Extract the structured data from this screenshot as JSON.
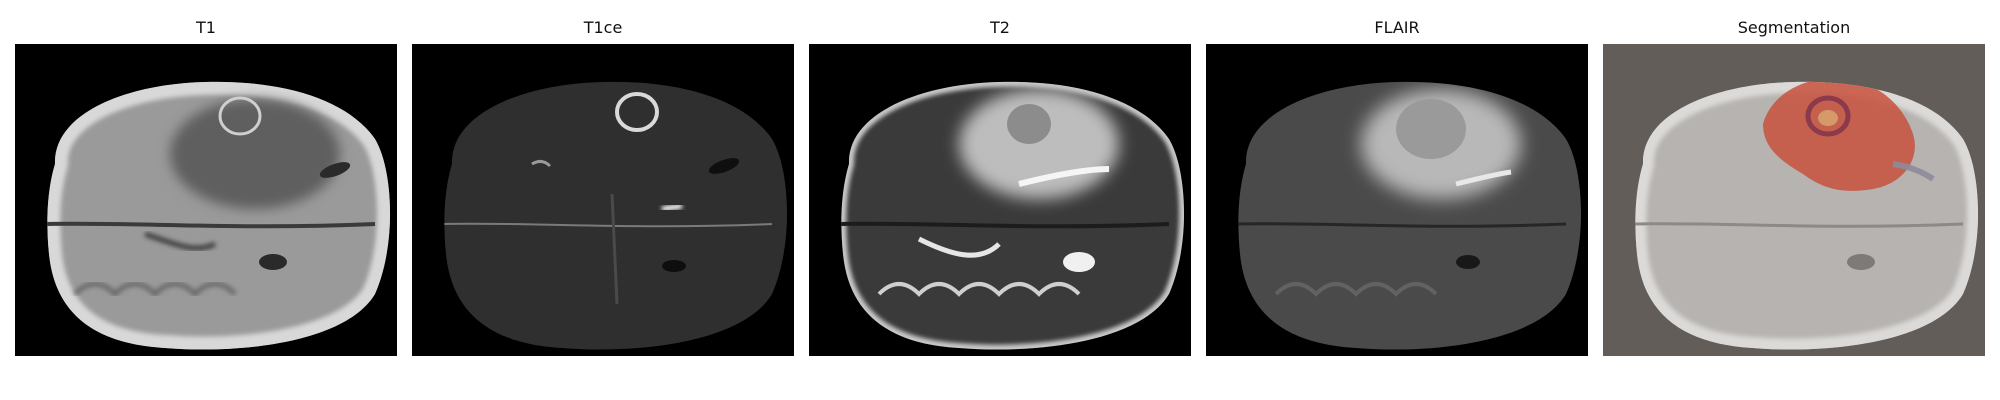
{
  "figure": {
    "panels": [
      {
        "title": "T1",
        "modality": "t1"
      },
      {
        "title": "T1ce",
        "modality": "t1ce"
      },
      {
        "title": "T2",
        "modality": "t2"
      },
      {
        "title": "FLAIR",
        "modality": "flair"
      },
      {
        "title": "Segmentation",
        "modality": "segmentation"
      }
    ]
  },
  "colors": {
    "frame_background": "#000000",
    "segmentation_background": "#625d59",
    "tumor_overlay": "#c8513e",
    "necrotic_core": "#8a3a4a"
  }
}
